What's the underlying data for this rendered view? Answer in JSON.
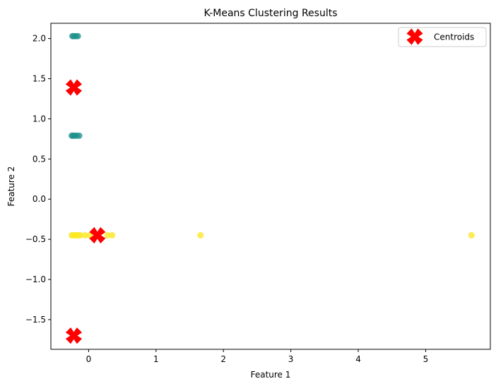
{
  "chart_data": {
    "type": "scatter",
    "title": "K-Means Clustering Results",
    "xlabel": "Feature 1",
    "ylabel": "Feature 2",
    "xlim": [
      -0.56,
      5.96
    ],
    "ylim": [
      -1.87,
      2.19
    ],
    "xticks": [
      0,
      1,
      2,
      3,
      4,
      5
    ],
    "xtick_labels": [
      "0",
      "1",
      "2",
      "3",
      "4",
      "5"
    ],
    "yticks": [
      2.0,
      1.5,
      1.0,
      0.5,
      0.0,
      -0.5,
      -1.0,
      -1.5
    ],
    "ytick_labels": [
      "2.0",
      "1.5",
      "1.0",
      "0.5",
      "0.0",
      "−0.5",
      "−1.0",
      "−1.5"
    ],
    "grid": false,
    "legend_position": "top-right",
    "legend": [
      "Centroids"
    ],
    "colors": {
      "cluster_teal": "#21918c",
      "cluster_yellow": "#fde725",
      "centroid": "#ff0000"
    },
    "series": [
      {
        "cluster": 1,
        "color": "#21918c",
        "x": [
          -0.24,
          -0.22,
          -0.19,
          -0.16
        ],
        "y": [
          2.03,
          2.03,
          2.03,
          2.03
        ]
      },
      {
        "cluster": 1,
        "color": "#21918c",
        "x": [
          -0.25,
          -0.23,
          -0.21,
          -0.18,
          -0.14
        ],
        "y": [
          0.79,
          0.79,
          0.79,
          0.79,
          0.79
        ]
      },
      {
        "cluster": 2,
        "color": "#fde725",
        "x": [
          -0.25,
          -0.23,
          -0.21,
          -0.19,
          -0.17,
          -0.15,
          -0.12,
          -0.05,
          0.02,
          0.13,
          0.28,
          0.35,
          1.66,
          5.68
        ],
        "y": [
          -0.45,
          -0.45,
          -0.45,
          -0.45,
          -0.45,
          -0.45,
          -0.45,
          -0.45,
          -0.45,
          -0.45,
          -0.45,
          -0.45,
          -0.45,
          -0.45
        ]
      }
    ],
    "centroids": {
      "name": "Centroids",
      "x": [
        -0.22,
        0.13,
        -0.22
      ],
      "y": [
        1.39,
        -0.45,
        -1.7
      ]
    }
  }
}
